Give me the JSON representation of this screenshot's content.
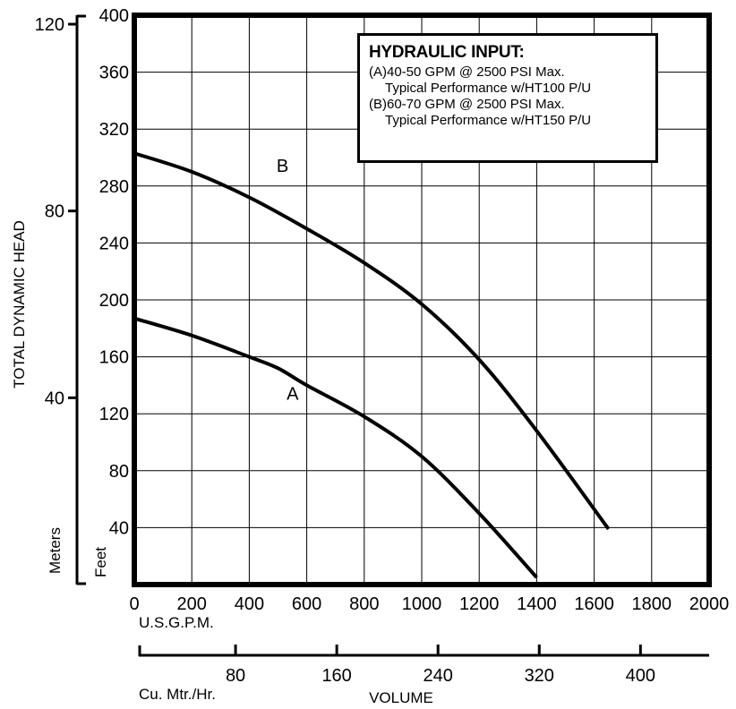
{
  "chart_data": {
    "type": "line",
    "xlabel": "VOLUME",
    "ylabel": "TOTAL DYNAMIC HEAD",
    "x_unit_primary": "U.S.G.P.M.",
    "x_unit_secondary": "Cu. Mtr./Hr.",
    "y_unit_primary": "Feet",
    "y_unit_secondary": "Meters",
    "xlim": [
      0,
      2000
    ],
    "ylim": [
      0,
      400
    ],
    "x_ticks": [
      "0",
      "200",
      "400",
      "600",
      "800",
      "1000",
      "1200",
      "1400",
      "1600",
      "1800",
      "2000"
    ],
    "y_ticks": [
      "40",
      "80",
      "120",
      "160",
      "200",
      "240",
      "280",
      "320",
      "360",
      "400"
    ],
    "secondary_x_ticks": [
      {
        "value": 80,
        "label": "80"
      },
      {
        "value": 160,
        "label": "160"
      },
      {
        "value": 240,
        "label": "240"
      },
      {
        "value": 320,
        "label": "320"
      },
      {
        "value": 400,
        "label": "400"
      }
    ],
    "secondary_y_ticks": [
      {
        "value": 40,
        "label": "40"
      },
      {
        "value": 80,
        "label": "80"
      },
      {
        "value": 120,
        "label": "120"
      }
    ],
    "grid": true,
    "series": [
      {
        "name": "A",
        "x": [
          0,
          200,
          400,
          500,
          600,
          800,
          1000,
          1200,
          1400
        ],
        "y": [
          187,
          175,
          160,
          152,
          140,
          118,
          90,
          50,
          5
        ]
      },
      {
        "name": "B",
        "x": [
          0,
          200,
          400,
          600,
          800,
          1000,
          1200,
          1400,
          1650
        ],
        "y": [
          303,
          290,
          272,
          250,
          226,
          197,
          158,
          108,
          39
        ]
      }
    ],
    "legend": {
      "title": "HYDRAULIC INPUT:",
      "lines": [
        {
          "text": "(A)40-50 GPM @ 2500 PSI Max.",
          "indent": false
        },
        {
          "text": "Typical Performance w/HT100 P/U",
          "indent": true
        },
        {
          "text": "(B)60-70 GPM @ 2500 PSI Max.",
          "indent": false
        },
        {
          "text": "Typical Performance w/HT150 P/U",
          "indent": true
        }
      ],
      "position": "top-right"
    }
  }
}
